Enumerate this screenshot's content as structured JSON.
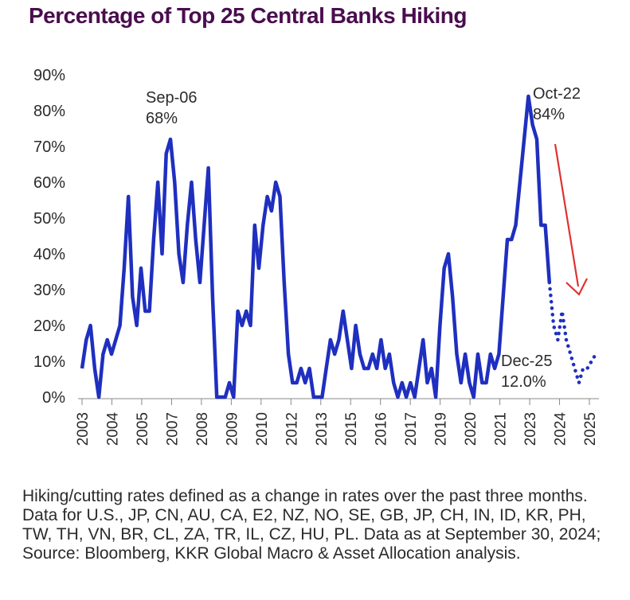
{
  "title": "Percentage of Top 25 Central Banks Hiking",
  "footnote": "Hiking/cutting rates defined as a change in rates over the past three months. Data for U.S., JP, CN, AU, CA, E2, NZ, NO, SE, GB, JP, CH, IN, ID, KR, PH, TW, TH, VN, BR, CL, ZA, TR, IL, CZ, HU, PL. Data as at September 30, 2024; Source: Bloomberg, KKR Global Macro & Asset Allocation analysis.",
  "colors": {
    "title": "#4a0d4e",
    "line": "#1f2fbf",
    "arrow": "#e03131",
    "axis": "#888888"
  },
  "chart_data": {
    "type": "line",
    "title": "Percentage of Top 25 Central Banks Hiking",
    "xlabel": "",
    "ylabel": "",
    "ylim": [
      0,
      90
    ],
    "y_ticks": [
      "0%",
      "10%",
      "20%",
      "30%",
      "40%",
      "50%",
      "60%",
      "70%",
      "80%",
      "90%"
    ],
    "x_ticks": [
      "2003",
      "2004",
      "2005",
      "2007",
      "2008",
      "2009",
      "2010",
      "2012",
      "2013",
      "2015",
      "2016",
      "2017",
      "2019",
      "2020",
      "2021",
      "2023",
      "2024",
      "2025"
    ],
    "grid": false,
    "series": [
      {
        "style": "solid",
        "values": [
          8,
          16,
          20,
          8,
          0,
          12,
          16,
          12,
          16,
          20,
          36,
          56,
          28,
          20,
          36,
          24,
          24,
          44,
          60,
          40,
          68,
          72,
          60,
          40,
          32,
          48,
          60,
          44,
          32,
          48,
          64,
          28,
          0,
          0,
          0,
          4,
          0,
          24,
          20,
          24,
          20,
          48,
          36,
          48,
          56,
          52,
          60,
          56,
          32,
          12,
          4,
          4,
          8,
          4,
          8,
          0,
          0,
          0,
          8,
          16,
          12,
          16,
          24,
          16,
          8,
          20,
          12,
          8,
          8,
          12,
          8,
          16,
          8,
          12,
          4,
          0,
          4,
          0,
          4,
          0,
          8,
          16,
          4,
          8,
          0,
          20,
          36,
          40,
          28,
          12,
          4,
          12,
          4,
          0,
          12,
          4,
          4,
          12,
          8,
          12,
          28,
          44,
          44,
          48,
          60,
          72,
          84,
          76,
          72,
          48,
          48,
          32
        ]
      },
      {
        "style": "dotted",
        "values": [
          32,
          20,
          16,
          24,
          16,
          12,
          8,
          4,
          8,
          8,
          10,
          12
        ]
      }
    ],
    "annotations": [
      {
        "lines": [
          "Sep-06",
          "68%"
        ]
      },
      {
        "lines": [
          "Oct-22",
          "84%"
        ]
      },
      {
        "lines": [
          "Dec-25",
          "12.0%"
        ]
      }
    ]
  }
}
